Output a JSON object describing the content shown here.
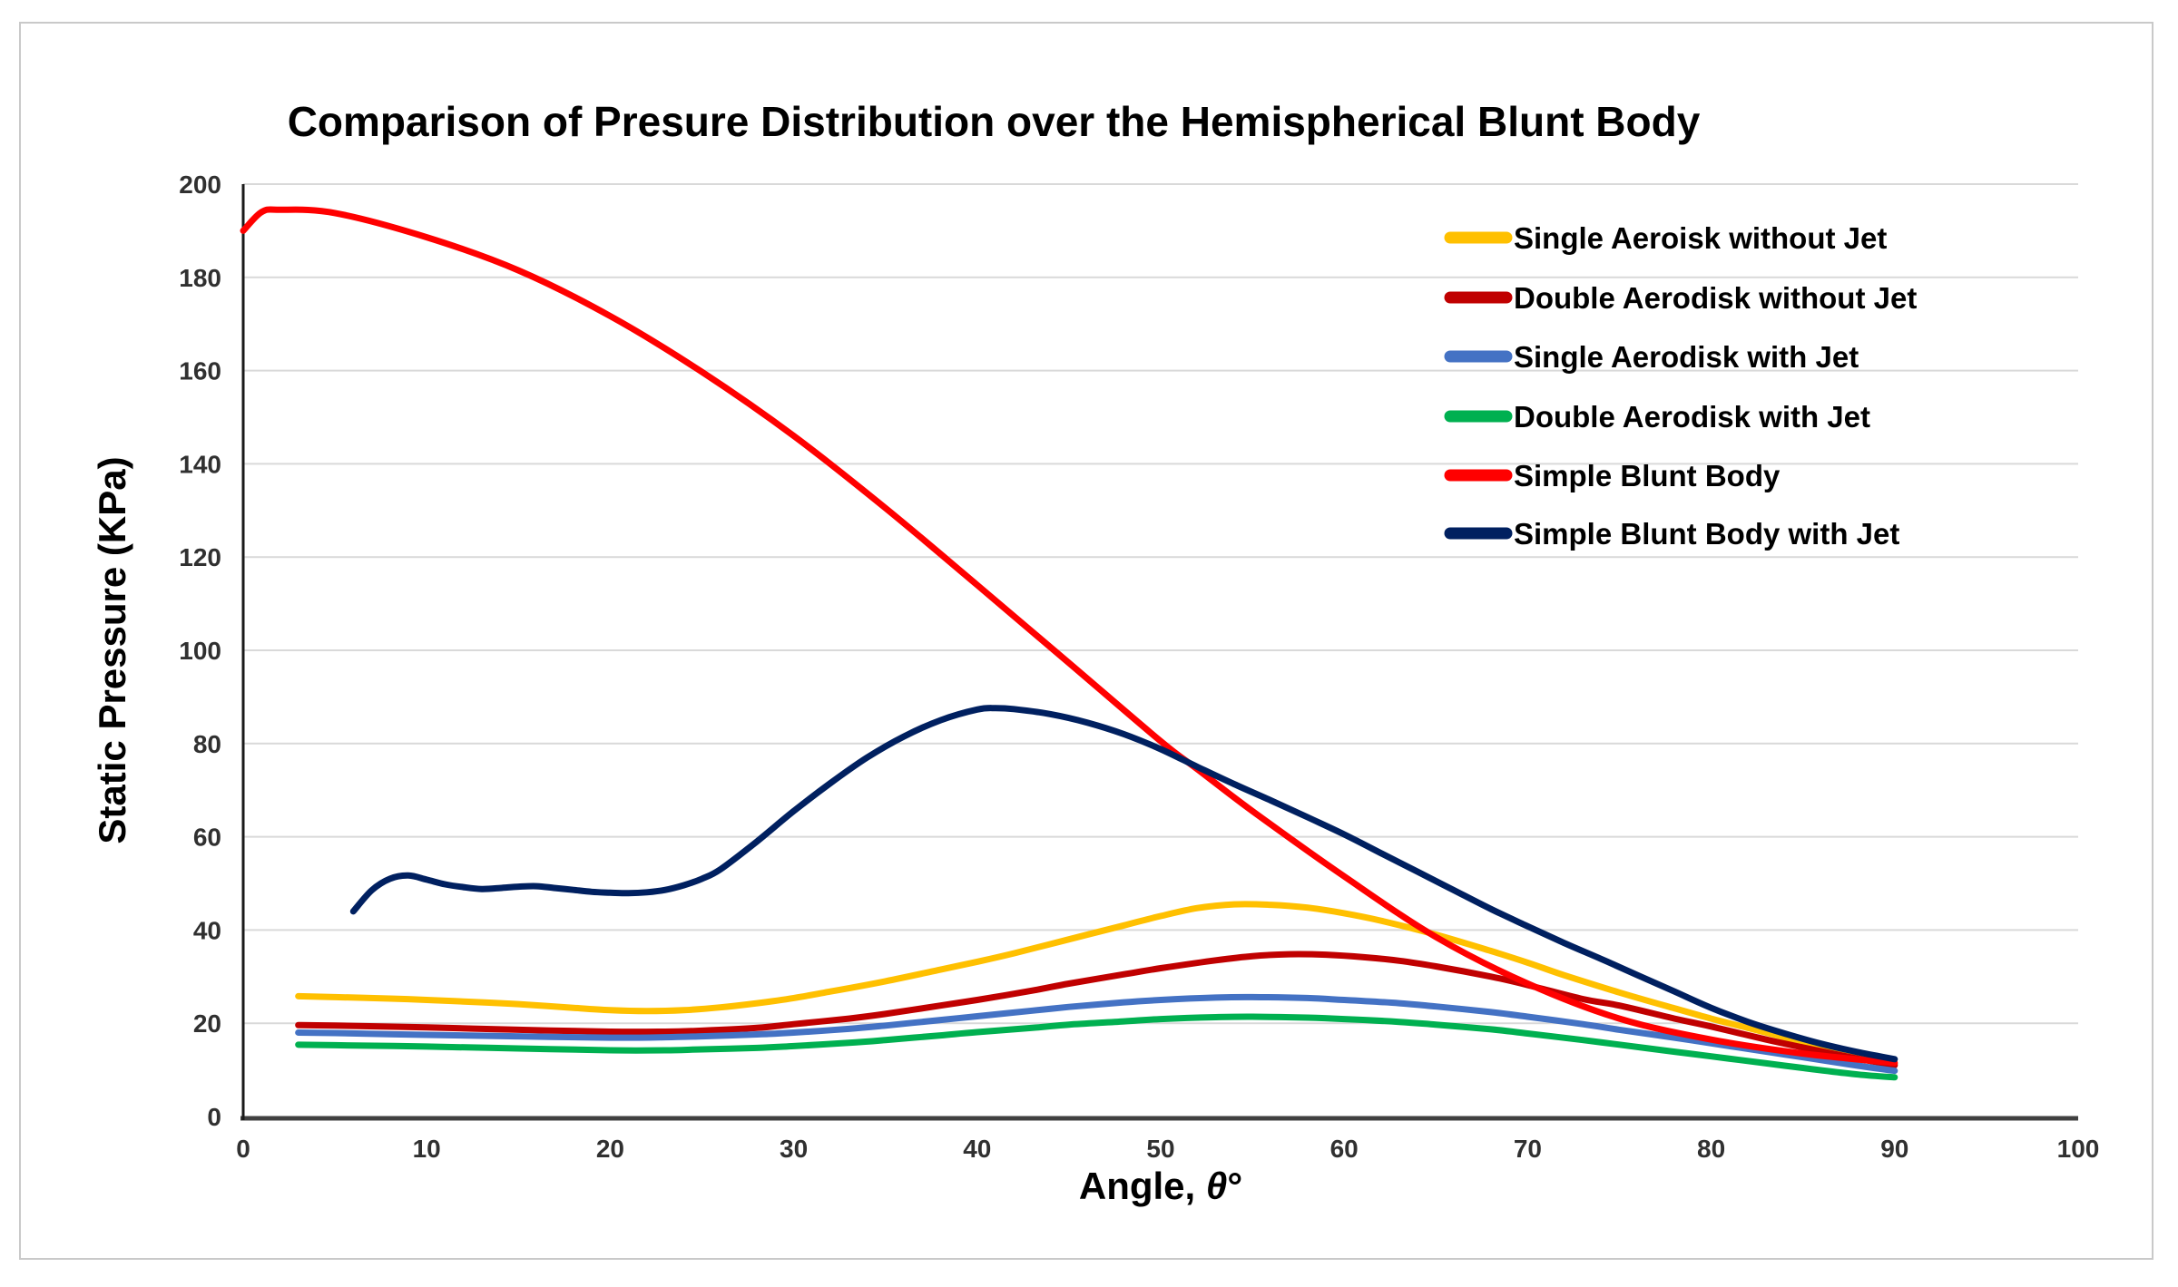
{
  "figure": {
    "background": "#ffffff",
    "frame_color": "#c9c9c9",
    "axis_color": "#404040",
    "y_axis_line_color": "#1a1a1a",
    "grid_color": "#d9d9d9",
    "tick_text_color": "#303030"
  },
  "chart_data": {
    "type": "line",
    "title": "Comparison of  Presure Distribution over the Hemispherical Blunt Body",
    "xlabel": "Angle, θ°",
    "xlabel_parts": {
      "prefix": "Angle, ",
      "symbol": "θ",
      "suffix": "°"
    },
    "ylabel": "Static Pressure (KPa)",
    "xlim": [
      0,
      100
    ],
    "ylim": [
      0,
      200
    ],
    "x_ticks": [
      0,
      10,
      20,
      30,
      40,
      50,
      60,
      70,
      80,
      90,
      100
    ],
    "y_ticks": [
      0,
      20,
      40,
      60,
      80,
      100,
      120,
      140,
      160,
      180,
      200
    ],
    "grid": "horizontal",
    "legend_position": "top-right-inside",
    "series": [
      {
        "name": "Single Aeroisk without Jet",
        "color": "#FFC000",
        "points": [
          [
            3,
            25.8
          ],
          [
            5,
            25.6
          ],
          [
            8,
            25.3
          ],
          [
            10,
            25.0
          ],
          [
            13,
            24.5
          ],
          [
            15,
            24.1
          ],
          [
            18,
            23.3
          ],
          [
            20,
            22.8
          ],
          [
            22,
            22.6
          ],
          [
            24,
            22.8
          ],
          [
            26,
            23.4
          ],
          [
            28,
            24.3
          ],
          [
            30,
            25.4
          ],
          [
            32,
            26.8
          ],
          [
            35,
            29.0
          ],
          [
            38,
            31.5
          ],
          [
            40,
            33.2
          ],
          [
            42,
            35.0
          ],
          [
            45,
            38.0
          ],
          [
            48,
            41.0
          ],
          [
            50,
            43.0
          ],
          [
            52,
            44.7
          ],
          [
            54,
            45.5
          ],
          [
            56,
            45.4
          ],
          [
            58,
            44.8
          ],
          [
            60,
            43.6
          ],
          [
            62,
            42.0
          ],
          [
            65,
            39.0
          ],
          [
            68,
            35.5
          ],
          [
            70,
            33.0
          ],
          [
            72,
            30.3
          ],
          [
            75,
            26.6
          ],
          [
            78,
            23.2
          ],
          [
            80,
            21.0
          ],
          [
            82,
            19.0
          ],
          [
            85,
            16.0
          ],
          [
            88,
            13.2
          ],
          [
            90,
            11.3
          ]
        ]
      },
      {
        "name": "Double Aerodisk without Jet",
        "color": "#C00000",
        "points": [
          [
            3,
            19.6
          ],
          [
            5,
            19.5
          ],
          [
            10,
            19.1
          ],
          [
            15,
            18.6
          ],
          [
            20,
            18.2
          ],
          [
            23,
            18.2
          ],
          [
            25,
            18.4
          ],
          [
            28,
            19.0
          ],
          [
            30,
            19.8
          ],
          [
            33,
            21.0
          ],
          [
            35,
            22.0
          ],
          [
            38,
            23.8
          ],
          [
            40,
            25.0
          ],
          [
            43,
            27.0
          ],
          [
            45,
            28.5
          ],
          [
            48,
            30.5
          ],
          [
            50,
            31.8
          ],
          [
            53,
            33.5
          ],
          [
            55,
            34.4
          ],
          [
            57,
            34.8
          ],
          [
            59,
            34.7
          ],
          [
            61,
            34.2
          ],
          [
            63,
            33.4
          ],
          [
            65,
            32.2
          ],
          [
            68,
            30.0
          ],
          [
            70,
            28.2
          ],
          [
            73,
            25.2
          ],
          [
            75,
            23.8
          ],
          [
            78,
            21.0
          ],
          [
            80,
            19.3
          ],
          [
            83,
            16.5
          ],
          [
            85,
            14.8
          ],
          [
            88,
            12.4
          ],
          [
            90,
            11.0
          ]
        ]
      },
      {
        "name": "Single Aerodisk with Jet",
        "color": "#4472C4",
        "points": [
          [
            3,
            18.0
          ],
          [
            5,
            17.9
          ],
          [
            10,
            17.5
          ],
          [
            15,
            17.2
          ],
          [
            20,
            16.9
          ],
          [
            23,
            17.0
          ],
          [
            25,
            17.2
          ],
          [
            28,
            17.6
          ],
          [
            30,
            18.0
          ],
          [
            33,
            18.8
          ],
          [
            35,
            19.5
          ],
          [
            38,
            20.7
          ],
          [
            40,
            21.5
          ],
          [
            43,
            22.7
          ],
          [
            45,
            23.5
          ],
          [
            48,
            24.5
          ],
          [
            50,
            25.0
          ],
          [
            53,
            25.5
          ],
          [
            55,
            25.6
          ],
          [
            58,
            25.4
          ],
          [
            60,
            25.0
          ],
          [
            63,
            24.3
          ],
          [
            65,
            23.6
          ],
          [
            68,
            22.4
          ],
          [
            70,
            21.4
          ],
          [
            73,
            19.8
          ],
          [
            75,
            18.6
          ],
          [
            78,
            16.9
          ],
          [
            80,
            15.7
          ],
          [
            83,
            13.9
          ],
          [
            85,
            12.7
          ],
          [
            88,
            10.9
          ],
          [
            90,
            9.8
          ]
        ]
      },
      {
        "name": "Double Aerodisk with Jet",
        "color": "#00B050",
        "points": [
          [
            3,
            15.4
          ],
          [
            5,
            15.3
          ],
          [
            10,
            15.0
          ],
          [
            15,
            14.6
          ],
          [
            20,
            14.2
          ],
          [
            23,
            14.2
          ],
          [
            25,
            14.4
          ],
          [
            28,
            14.7
          ],
          [
            30,
            15.1
          ],
          [
            33,
            15.8
          ],
          [
            35,
            16.4
          ],
          [
            38,
            17.4
          ],
          [
            40,
            18.1
          ],
          [
            43,
            19.0
          ],
          [
            45,
            19.7
          ],
          [
            48,
            20.4
          ],
          [
            50,
            20.9
          ],
          [
            53,
            21.3
          ],
          [
            55,
            21.4
          ],
          [
            58,
            21.2
          ],
          [
            60,
            20.9
          ],
          [
            63,
            20.3
          ],
          [
            65,
            19.7
          ],
          [
            68,
            18.7
          ],
          [
            70,
            17.8
          ],
          [
            73,
            16.4
          ],
          [
            75,
            15.4
          ],
          [
            78,
            13.9
          ],
          [
            80,
            12.9
          ],
          [
            83,
            11.4
          ],
          [
            85,
            10.4
          ],
          [
            88,
            9.0
          ],
          [
            90,
            8.4
          ]
        ]
      },
      {
        "name": "Simple Blunt Body",
        "color": "#FF0000",
        "points": [
          [
            0,
            190.0
          ],
          [
            1,
            194.0
          ],
          [
            2,
            194.5
          ],
          [
            5,
            193.8
          ],
          [
            10,
            188.6
          ],
          [
            15,
            181.5
          ],
          [
            20,
            171.7
          ],
          [
            25,
            159.7
          ],
          [
            30,
            146.0
          ],
          [
            35,
            130.5
          ],
          [
            40,
            114.0
          ],
          [
            45,
            97.3
          ],
          [
            50,
            80.5
          ],
          [
            52,
            74.5
          ],
          [
            55,
            65.5
          ],
          [
            60,
            51.5
          ],
          [
            65,
            38.5
          ],
          [
            70,
            28.5
          ],
          [
            75,
            21.0
          ],
          [
            80,
            16.5
          ],
          [
            85,
            13.5
          ],
          [
            90,
            11.5
          ]
        ]
      },
      {
        "name": "Simple Blunt Body with Jet",
        "color": "#002060",
        "points": [
          [
            6,
            44.0
          ],
          [
            7,
            48.5
          ],
          [
            8,
            51.0
          ],
          [
            9,
            51.7
          ],
          [
            10,
            50.8
          ],
          [
            11,
            49.8
          ],
          [
            12,
            49.2
          ],
          [
            13,
            48.8
          ],
          [
            14,
            49.0
          ],
          [
            15,
            49.3
          ],
          [
            16,
            49.4
          ],
          [
            17,
            49.0
          ],
          [
            18,
            48.6
          ],
          [
            19,
            48.2
          ],
          [
            20,
            48.0
          ],
          [
            21,
            47.9
          ],
          [
            22,
            48.1
          ],
          [
            23,
            48.6
          ],
          [
            24,
            49.6
          ],
          [
            25,
            51.0
          ],
          [
            26,
            53.0
          ],
          [
            28,
            59.0
          ],
          [
            30,
            65.5
          ],
          [
            32,
            71.5
          ],
          [
            34,
            77.0
          ],
          [
            36,
            81.5
          ],
          [
            38,
            85.0
          ],
          [
            40,
            87.3
          ],
          [
            41,
            87.6
          ],
          [
            42,
            87.4
          ],
          [
            44,
            86.3
          ],
          [
            46,
            84.5
          ],
          [
            48,
            82.0
          ],
          [
            50,
            78.8
          ],
          [
            52,
            75.0
          ],
          [
            54,
            71.3
          ],
          [
            56,
            67.8
          ],
          [
            58,
            64.2
          ],
          [
            60,
            60.5
          ],
          [
            62,
            56.5
          ],
          [
            64,
            52.5
          ],
          [
            66,
            48.5
          ],
          [
            68,
            44.5
          ],
          [
            70,
            40.8
          ],
          [
            72,
            37.2
          ],
          [
            74,
            33.8
          ],
          [
            76,
            30.3
          ],
          [
            78,
            26.8
          ],
          [
            80,
            23.3
          ],
          [
            82,
            20.3
          ],
          [
            84,
            17.8
          ],
          [
            86,
            15.6
          ],
          [
            88,
            13.8
          ],
          [
            90,
            12.3
          ]
        ]
      }
    ]
  }
}
